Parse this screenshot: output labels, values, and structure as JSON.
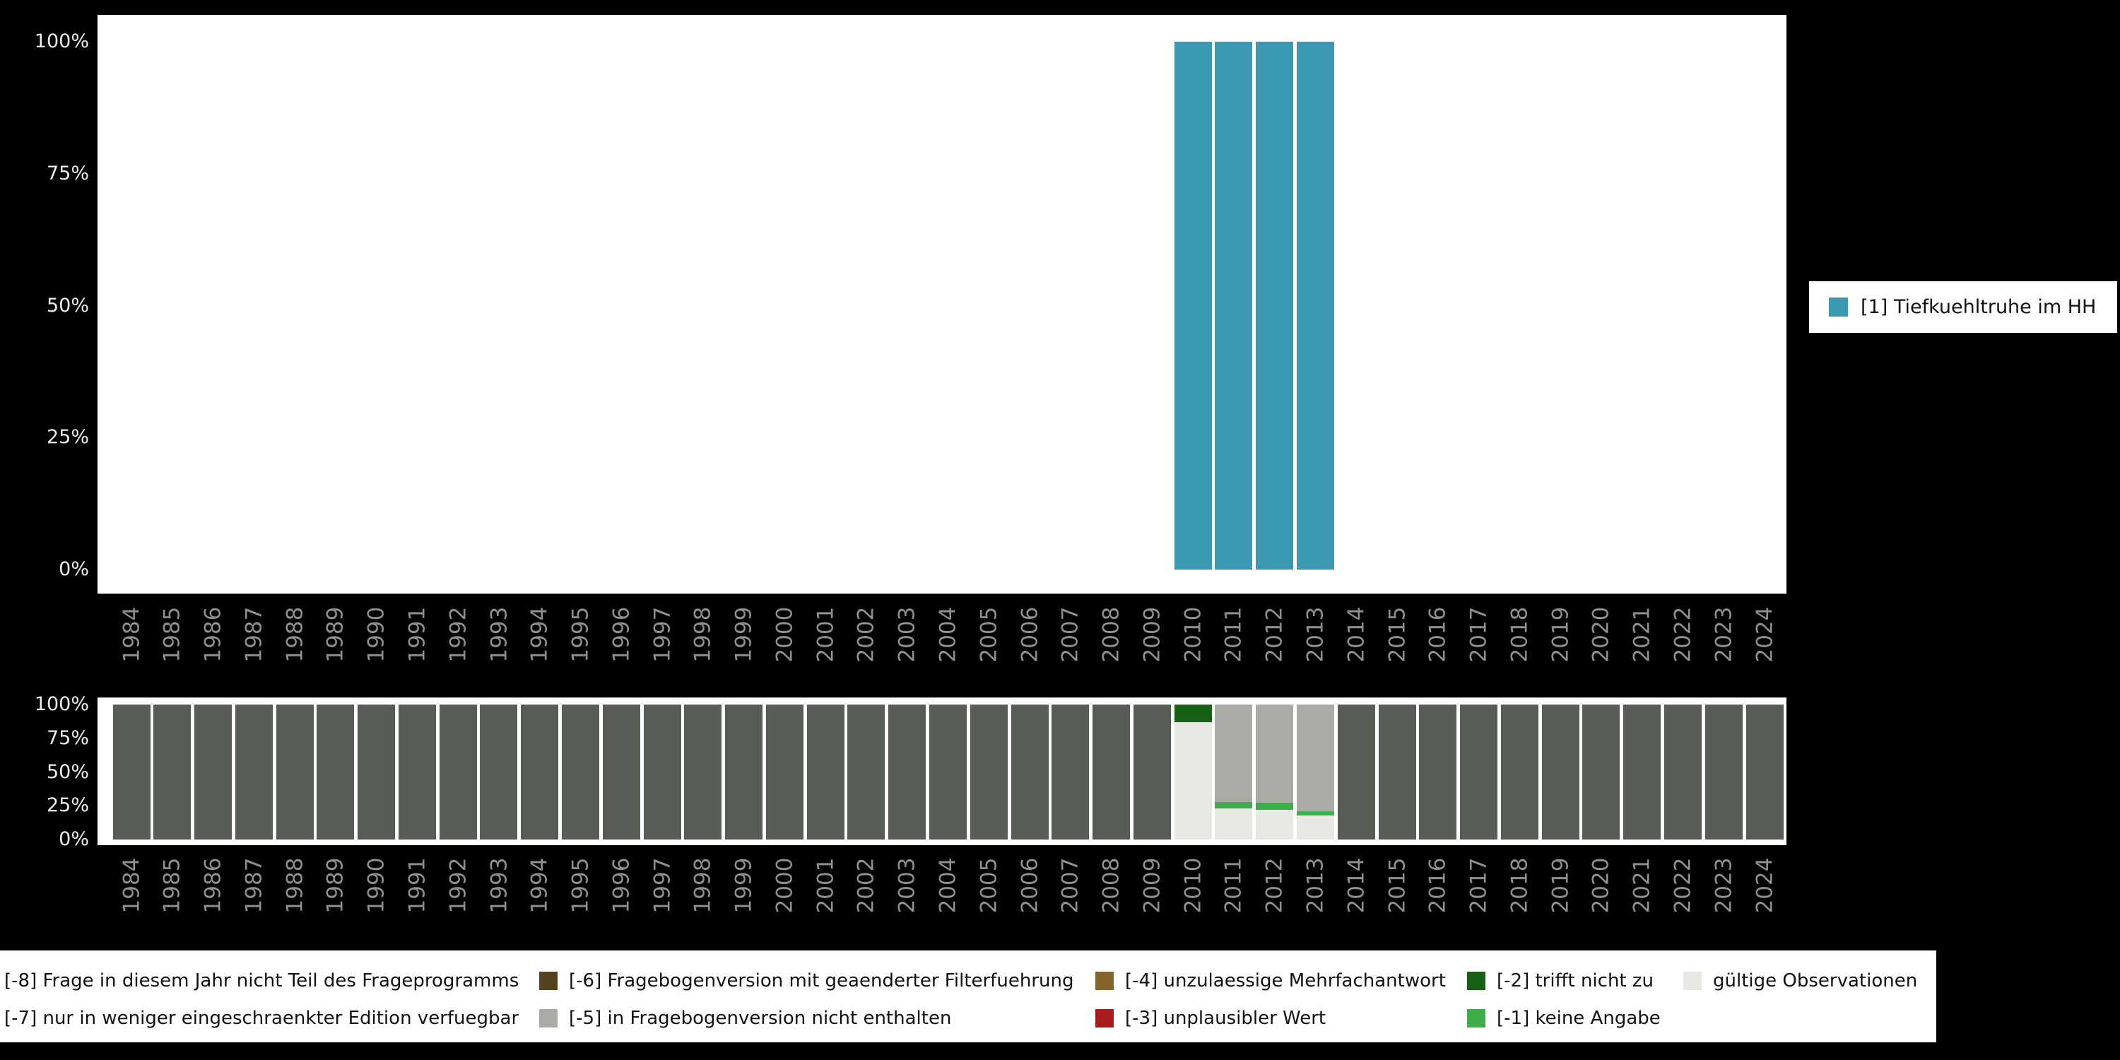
{
  "page": {
    "background": "#000000",
    "plot_background": "#ffffff"
  },
  "y_axis": {
    "ticks": [
      {
        "label": "100%",
        "pct": 100
      },
      {
        "label": "75%",
        "pct": 75
      },
      {
        "label": "50%",
        "pct": 50
      },
      {
        "label": "25%",
        "pct": 25
      },
      {
        "label": "0%",
        "pct": 0
      }
    ]
  },
  "years": [
    "1984",
    "1985",
    "1986",
    "1987",
    "1988",
    "1989",
    "1990",
    "1991",
    "1992",
    "1993",
    "1994",
    "1995",
    "1996",
    "1997",
    "1998",
    "1999",
    "2000",
    "2001",
    "2002",
    "2003",
    "2004",
    "2005",
    "2006",
    "2007",
    "2008",
    "2009",
    "2010",
    "2011",
    "2012",
    "2013",
    "2014",
    "2015",
    "2016",
    "2017",
    "2018",
    "2019",
    "2020",
    "2021",
    "2022",
    "2023",
    "2024"
  ],
  "legend_top": {
    "label": "[1] Tiefkuehltruhe im HH",
    "color": "#3b99b2"
  },
  "legend_bottom": {
    "rows": [
      [
        {
          "code": "-8",
          "label": "[-8] Frage in diesem Jahr nicht Teil des Frageprogramms",
          "color": "#575d55",
          "swatch_clipped": true
        },
        {
          "code": "-6",
          "label": "[-6] Fragebogenversion mit geaenderter Filterfuehrung",
          "color": "#54431c",
          "swatch_clipped": false
        },
        {
          "code": "-4",
          "label": "[-4] unzulaessige Mehrfachantwort",
          "color": "#84642c",
          "swatch_clipped": false
        },
        {
          "code": "-2",
          "label": "[-2] trifft nicht zu",
          "color": "#176117",
          "swatch_clipped": false
        },
        {
          "code": "valid",
          "label": "gültige Observationen",
          "color": "#e6e9e2",
          "swatch_clipped": false
        }
      ],
      [
        {
          "code": "-7",
          "label": "[-7] nur in weniger eingeschraenkter Edition verfuegbar",
          "color": "#8e8e8e",
          "swatch_clipped": true
        },
        {
          "code": "-5",
          "label": "[-5] in Fragebogenversion nicht enthalten",
          "color": "#a9aca4",
          "swatch_clipped": false
        },
        {
          "code": "-3",
          "label": "[-3] unplausibler Wert",
          "color": "#a81c1c",
          "swatch_clipped": false
        },
        {
          "code": "-1",
          "label": "[-1] keine Angabe",
          "color": "#3fae4a",
          "swatch_clipped": false
        }
      ]
    ]
  },
  "chart_data": [
    {
      "type": "bar",
      "stacked": true,
      "title": "",
      "xlabel": "",
      "ylabel": "",
      "ylim": [
        0,
        100
      ],
      "yticks": [
        "0%",
        "25%",
        "50%",
        "75%",
        "100%"
      ],
      "legend_position": "right",
      "grid": false,
      "categories": [
        "1984",
        "1985",
        "1986",
        "1987",
        "1988",
        "1989",
        "1990",
        "1991",
        "1992",
        "1993",
        "1994",
        "1995",
        "1996",
        "1997",
        "1998",
        "1999",
        "2000",
        "2001",
        "2002",
        "2003",
        "2004",
        "2005",
        "2006",
        "2007",
        "2008",
        "2009",
        "2010",
        "2011",
        "2012",
        "2013",
        "2014",
        "2015",
        "2016",
        "2017",
        "2018",
        "2019",
        "2020",
        "2021",
        "2022",
        "2023",
        "2024"
      ],
      "series": [
        {
          "name": "[1] Tiefkuehltruhe im HH",
          "code": "1",
          "color": "#3b99b2",
          "values": [
            0,
            0,
            0,
            0,
            0,
            0,
            0,
            0,
            0,
            0,
            0,
            0,
            0,
            0,
            0,
            0,
            0,
            0,
            0,
            0,
            0,
            0,
            0,
            0,
            0,
            0,
            100,
            100,
            100,
            100,
            0,
            0,
            0,
            0,
            0,
            0,
            0,
            0,
            0,
            0,
            0
          ]
        }
      ]
    },
    {
      "type": "bar",
      "stacked": true,
      "stack_order": "bottom-to-top",
      "title": "missings",
      "xlabel": "",
      "ylabel": "",
      "ylim": [
        0,
        100
      ],
      "yticks": [
        "0%",
        "25%",
        "50%",
        "75%",
        "100%"
      ],
      "legend_position": "bottom",
      "grid": false,
      "categories": [
        "1984",
        "1985",
        "1986",
        "1987",
        "1988",
        "1989",
        "1990",
        "1991",
        "1992",
        "1993",
        "1994",
        "1995",
        "1996",
        "1997",
        "1998",
        "1999",
        "2000",
        "2001",
        "2002",
        "2003",
        "2004",
        "2005",
        "2006",
        "2007",
        "2008",
        "2009",
        "2010",
        "2011",
        "2012",
        "2013",
        "2014",
        "2015",
        "2016",
        "2017",
        "2018",
        "2019",
        "2020",
        "2021",
        "2022",
        "2023",
        "2024"
      ],
      "series": [
        {
          "name": "gültige Observationen",
          "code": "valid",
          "color": "#e6e9e2",
          "values": [
            0,
            0,
            0,
            0,
            0,
            0,
            0,
            0,
            0,
            0,
            0,
            0,
            0,
            0,
            0,
            0,
            0,
            0,
            0,
            0,
            0,
            0,
            0,
            0,
            0,
            0,
            87,
            23,
            22,
            18,
            0,
            0,
            0,
            0,
            0,
            0,
            0,
            0,
            0,
            0,
            0
          ]
        },
        {
          "name": "[-1] keine Angabe",
          "code": "-1",
          "color": "#3fae4a",
          "values": [
            0,
            0,
            0,
            0,
            0,
            0,
            0,
            0,
            0,
            0,
            0,
            0,
            0,
            0,
            0,
            0,
            0,
            0,
            0,
            0,
            0,
            0,
            0,
            0,
            0,
            0,
            0,
            5,
            5,
            3,
            0,
            0,
            0,
            0,
            0,
            0,
            0,
            0,
            0,
            0,
            0
          ]
        },
        {
          "name": "[-2] trifft nicht zu",
          "code": "-2",
          "color": "#176117",
          "values": [
            0,
            0,
            0,
            0,
            0,
            0,
            0,
            0,
            0,
            0,
            0,
            0,
            0,
            0,
            0,
            0,
            0,
            0,
            0,
            0,
            0,
            0,
            0,
            0,
            0,
            0,
            13,
            0,
            0,
            0,
            0,
            0,
            0,
            0,
            0,
            0,
            0,
            0,
            0,
            0,
            0
          ]
        },
        {
          "name": "[-5] in Fragebogenversion nicht enthalten",
          "code": "-5",
          "color": "#a9aca4",
          "values": [
            0,
            0,
            0,
            0,
            0,
            0,
            0,
            0,
            0,
            0,
            0,
            0,
            0,
            0,
            0,
            0,
            0,
            0,
            0,
            0,
            0,
            0,
            0,
            0,
            0,
            0,
            0,
            72,
            73,
            79,
            0,
            0,
            0,
            0,
            0,
            0,
            0,
            0,
            0,
            0,
            0
          ]
        },
        {
          "name": "[-8] Frage in diesem Jahr nicht Teil des Frageprogramms",
          "code": "-8",
          "color": "#575d55",
          "values": [
            100,
            100,
            100,
            100,
            100,
            100,
            100,
            100,
            100,
            100,
            100,
            100,
            100,
            100,
            100,
            100,
            100,
            100,
            100,
            100,
            100,
            100,
            100,
            100,
            100,
            100,
            0,
            0,
            0,
            0,
            100,
            100,
            100,
            100,
            100,
            100,
            100,
            100,
            100,
            100,
            100
          ]
        }
      ]
    }
  ]
}
